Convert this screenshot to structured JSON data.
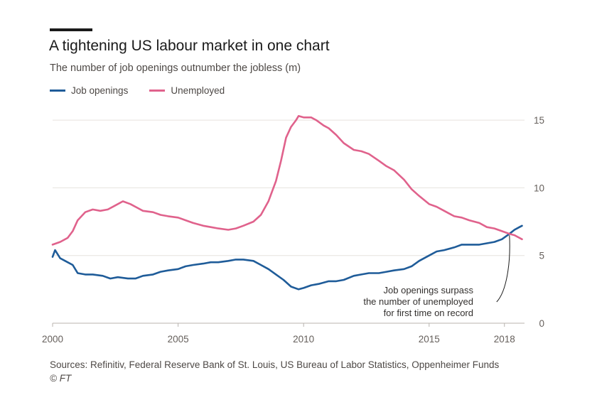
{
  "header": {
    "title": "A tightening US labour market in one chart",
    "subtitle": "The number of job openings outnumber the jobless (m)"
  },
  "footer": {
    "source": "Sources: Refinitiv, Federal Reserve Bank of St. Louis, US Bureau of Labor Statistics, Oppenheimer Funds",
    "credit": "© FT"
  },
  "chart_data": {
    "type": "line",
    "legend_position": "top-left",
    "grid": true,
    "xlim": [
      2000.0,
      2018.8
    ],
    "ylim": [
      0,
      16
    ],
    "x_ticks": [
      2000,
      2005,
      2010,
      2015,
      2018
    ],
    "x_tick_labels": [
      "2000",
      "2005",
      "2010",
      "2015",
      "2018"
    ],
    "y_ticks": [
      0,
      5,
      10,
      15
    ],
    "y_tick_labels": [
      "0",
      "5",
      "10",
      "15"
    ],
    "annotation": {
      "lines": [
        "Job openings surpass",
        "the number of unemployed",
        "for first time on record"
      ],
      "target_x": 2018.2,
      "target_y": 6.7
    },
    "series": [
      {
        "name": "Job openings",
        "color": "#1f5c99",
        "x": [
          2000.0,
          2000.1,
          2000.3,
          2000.5,
          2000.8,
          2001.0,
          2001.3,
          2001.6,
          2002.0,
          2002.3,
          2002.6,
          2003.0,
          2003.3,
          2003.6,
          2004.0,
          2004.3,
          2004.6,
          2005.0,
          2005.3,
          2005.6,
          2006.0,
          2006.3,
          2006.6,
          2007.0,
          2007.3,
          2007.6,
          2008.0,
          2008.3,
          2008.6,
          2008.9,
          2009.2,
          2009.5,
          2009.8,
          2010.0,
          2010.3,
          2010.6,
          2011.0,
          2011.3,
          2011.6,
          2012.0,
          2012.3,
          2012.6,
          2013.0,
          2013.3,
          2013.6,
          2014.0,
          2014.3,
          2014.6,
          2015.0,
          2015.3,
          2015.6,
          2016.0,
          2016.3,
          2016.6,
          2017.0,
          2017.3,
          2017.6,
          2017.9,
          2018.2,
          2018.4,
          2018.6,
          2018.7
        ],
        "y": [
          4.9,
          5.4,
          4.8,
          4.6,
          4.3,
          3.7,
          3.6,
          3.6,
          3.5,
          3.3,
          3.4,
          3.3,
          3.3,
          3.5,
          3.6,
          3.8,
          3.9,
          4.0,
          4.2,
          4.3,
          4.4,
          4.5,
          4.5,
          4.6,
          4.7,
          4.7,
          4.6,
          4.3,
          4.0,
          3.6,
          3.2,
          2.7,
          2.5,
          2.6,
          2.8,
          2.9,
          3.1,
          3.1,
          3.2,
          3.5,
          3.6,
          3.7,
          3.7,
          3.8,
          3.9,
          4.0,
          4.2,
          4.6,
          5.0,
          5.3,
          5.4,
          5.6,
          5.8,
          5.8,
          5.8,
          5.9,
          6.0,
          6.2,
          6.6,
          6.9,
          7.1,
          7.2
        ]
      },
      {
        "name": "Unemployed",
        "color": "#e0628c",
        "x": [
          2000.0,
          2000.3,
          2000.6,
          2000.8,
          2001.0,
          2001.3,
          2001.6,
          2001.9,
          2002.2,
          2002.5,
          2002.8,
          2003.1,
          2003.4,
          2003.6,
          2004.0,
          2004.3,
          2004.6,
          2005.0,
          2005.3,
          2005.6,
          2006.0,
          2006.3,
          2006.6,
          2007.0,
          2007.3,
          2007.6,
          2008.0,
          2008.3,
          2008.6,
          2008.9,
          2009.1,
          2009.3,
          2009.5,
          2009.7,
          2009.8,
          2010.0,
          2010.3,
          2010.5,
          2010.8,
          2011.0,
          2011.3,
          2011.6,
          2012.0,
          2012.3,
          2012.6,
          2013.0,
          2013.3,
          2013.6,
          2014.0,
          2014.3,
          2014.6,
          2015.0,
          2015.3,
          2015.6,
          2016.0,
          2016.3,
          2016.6,
          2017.0,
          2017.3,
          2017.6,
          2017.9,
          2018.2,
          2018.4,
          2018.6,
          2018.7
        ],
        "y": [
          5.8,
          6.0,
          6.3,
          6.8,
          7.6,
          8.2,
          8.4,
          8.3,
          8.4,
          8.7,
          9.0,
          8.8,
          8.5,
          8.3,
          8.2,
          8.0,
          7.9,
          7.8,
          7.6,
          7.4,
          7.2,
          7.1,
          7.0,
          6.9,
          7.0,
          7.2,
          7.5,
          8.0,
          9.0,
          10.5,
          12.0,
          13.7,
          14.5,
          15.0,
          15.3,
          15.2,
          15.2,
          15.0,
          14.6,
          14.4,
          13.9,
          13.3,
          12.8,
          12.7,
          12.5,
          12.0,
          11.6,
          11.3,
          10.6,
          9.9,
          9.4,
          8.8,
          8.6,
          8.3,
          7.9,
          7.8,
          7.6,
          7.4,
          7.1,
          7.0,
          6.8,
          6.6,
          6.5,
          6.3,
          6.2
        ]
      }
    ]
  }
}
